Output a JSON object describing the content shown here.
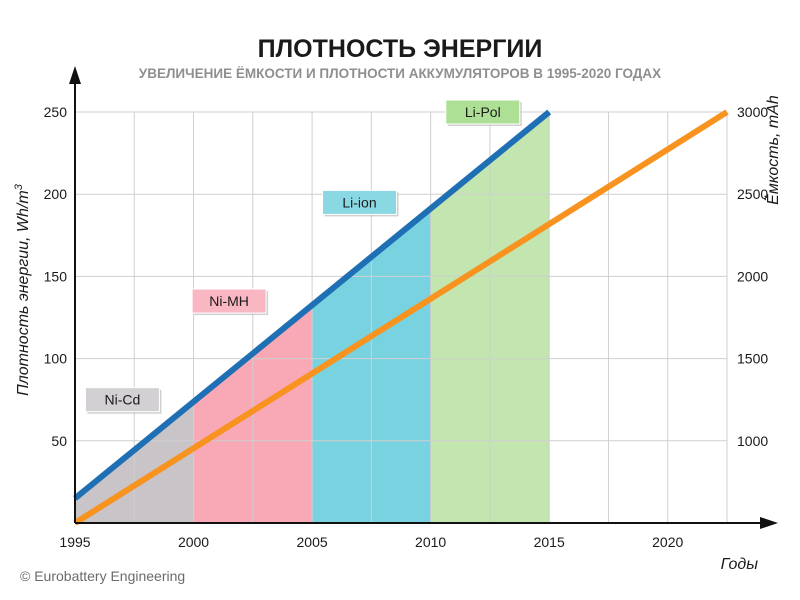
{
  "chart_data": {
    "type": "line",
    "title": "ПЛОТНОСТЬ ЭНЕРГИИ",
    "subtitle": "УВЕЛИЧЕНИЕ ЁМКОСТИ И ПЛОТНОСТИ АККУМУЛЯТОРОВ В 1995-2020 ГОДАХ",
    "xlabel": "Годы",
    "ylabel": "Плотность энергии, Wh/m",
    "ylabel_sup": "3",
    "y2label": "Ёмкость, mAh",
    "xlim": [
      1995,
      2022.5
    ],
    "ylim": [
      0,
      250
    ],
    "y2lim": [
      500,
      3000
    ],
    "x_ticks": [
      1995,
      2000,
      2005,
      2010,
      2015,
      2020
    ],
    "y_ticks": [
      50,
      100,
      150,
      200,
      250
    ],
    "y2_ticks": [
      1000,
      1500,
      2000,
      2500,
      3000
    ],
    "grid": true,
    "series": [
      {
        "axis": "left",
        "color": "#1f6fb5",
        "x": [
          1995,
          2015
        ],
        "y": [
          15,
          250
        ]
      },
      {
        "axis": "right",
        "color": "#f7931e",
        "x": [
          1995,
          2022.5
        ],
        "y": [
          500,
          3000
        ]
      }
    ],
    "regions": [
      {
        "label": "Ni-Cd",
        "x_start": 1995,
        "x_end": 2000,
        "color": "#c8c4c8",
        "label_color": "#d2d0d2",
        "label_x": 1997,
        "label_y": 75
      },
      {
        "label": "Ni-MH",
        "x_start": 2000,
        "x_end": 2005,
        "color": "#f9a8b6",
        "label_color": "#f9b7c3",
        "label_x": 2001.5,
        "label_y": 135
      },
      {
        "label": "Li-ion",
        "x_start": 2005,
        "x_end": 2010,
        "color": "#78d2e0",
        "label_color": "#8ad8e4",
        "label_x": 2007,
        "label_y": 195
      },
      {
        "label": "Li-Pol",
        "x_start": 2010,
        "x_end": 2015,
        "color": "#c3e6b0",
        "label_color": "#ade095",
        "label_x": 2012.2,
        "label_y": 250
      }
    ]
  },
  "credit": "© Eurobattery Engineering"
}
